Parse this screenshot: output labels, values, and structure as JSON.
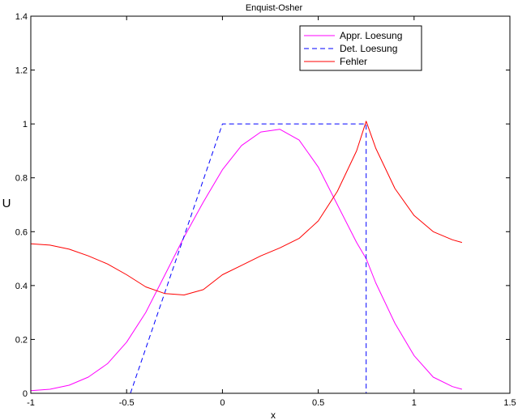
{
  "chart_data": {
    "type": "line",
    "title": "Enquist-Osher",
    "xlabel": "x",
    "ylabel": "U",
    "xlim": [
      -1,
      1.5
    ],
    "ylim": [
      0,
      1.4
    ],
    "xticks": [
      -1,
      -0.5,
      0,
      0.5,
      1,
      1.5
    ],
    "xtick_labels": [
      "-1",
      "-0.5",
      "0",
      "0.5",
      "1",
      "1.5"
    ],
    "yticks": [
      0,
      0.2,
      0.4,
      0.6,
      0.8,
      1,
      1.2,
      1.4
    ],
    "ytick_labels": [
      "0",
      "0.2",
      "0.4",
      "0.6",
      "0.8",
      "1",
      "1.2",
      "1.4"
    ],
    "grid": false,
    "legend_position": "top-right",
    "series": [
      {
        "name": "Appr. Loesung",
        "color": "#ff00ff",
        "style": "solid",
        "x": [
          -1,
          -0.9,
          -0.8,
          -0.7,
          -0.6,
          -0.5,
          -0.4,
          -0.3,
          -0.2,
          -0.1,
          0,
          0.1,
          0.2,
          0.3,
          0.4,
          0.5,
          0.6,
          0.7,
          0.75,
          0.8,
          0.9,
          1,
          1.1,
          1.2,
          1.25
        ],
        "y": [
          0.01,
          0.015,
          0.03,
          0.06,
          0.11,
          0.19,
          0.3,
          0.44,
          0.58,
          0.71,
          0.83,
          0.92,
          0.97,
          0.98,
          0.94,
          0.84,
          0.7,
          0.56,
          0.5,
          0.41,
          0.26,
          0.14,
          0.06,
          0.025,
          0.015
        ]
      },
      {
        "name": "Det. Loesung",
        "color": "#0000ff",
        "style": "dashed",
        "x": [
          -0.48,
          0,
          0.75,
          0.75
        ],
        "y": [
          0,
          1,
          1,
          0
        ]
      },
      {
        "name": "Fehler",
        "color": "#ff0000",
        "style": "solid",
        "x": [
          -1,
          -0.9,
          -0.8,
          -0.7,
          -0.6,
          -0.5,
          -0.4,
          -0.3,
          -0.2,
          -0.1,
          0,
          0.1,
          0.2,
          0.3,
          0.4,
          0.5,
          0.6,
          0.7,
          0.75,
          0.8,
          0.9,
          1,
          1.1,
          1.2,
          1.25
        ],
        "y": [
          0.555,
          0.55,
          0.535,
          0.51,
          0.48,
          0.44,
          0.395,
          0.37,
          0.365,
          0.385,
          0.44,
          0.475,
          0.51,
          0.54,
          0.575,
          0.64,
          0.75,
          0.9,
          1.01,
          0.91,
          0.76,
          0.66,
          0.6,
          0.57,
          0.56
        ]
      }
    ]
  }
}
